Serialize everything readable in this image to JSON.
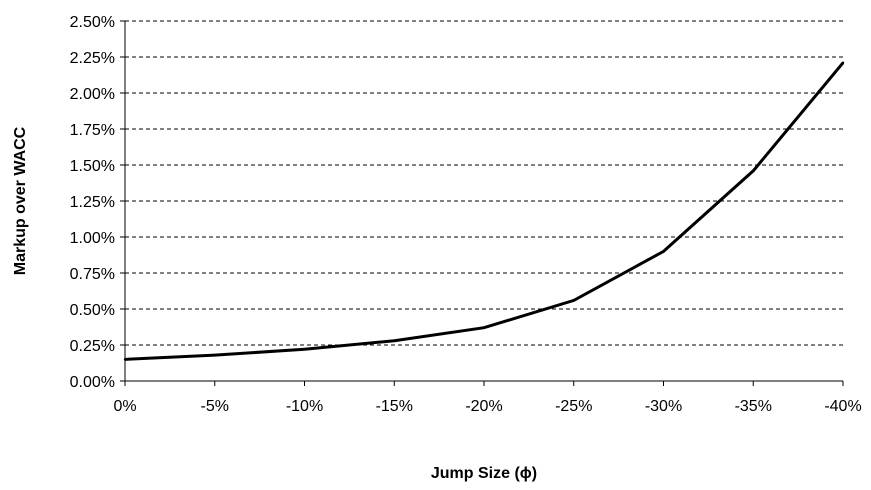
{
  "chart_data": {
    "type": "line",
    "title": "",
    "xlabel": "Jump Size (ϕ)",
    "ylabel": "Markup over WACC",
    "categories": [
      "0%",
      "-5%",
      "-10%",
      "-15%",
      "-20%",
      "-25%",
      "-30%",
      "-35%",
      "-40%"
    ],
    "series": [
      {
        "values": [
          0.0015,
          0.0018,
          0.0022,
          0.0028,
          0.0037,
          0.0056,
          0.009,
          0.0146,
          0.0221
        ]
      }
    ],
    "ylim": [
      0,
      0.025
    ],
    "yticks": [
      {
        "value": 0.0,
        "label": "0.00%"
      },
      {
        "value": 0.0025,
        "label": "0.25%"
      },
      {
        "value": 0.005,
        "label": "0.50%"
      },
      {
        "value": 0.0075,
        "label": "0.75%"
      },
      {
        "value": 0.01,
        "label": "1.00%"
      },
      {
        "value": 0.0125,
        "label": "1.25%"
      },
      {
        "value": 0.015,
        "label": "1.50%"
      },
      {
        "value": 0.0175,
        "label": "1.75%"
      },
      {
        "value": 0.02,
        "label": "2.00%"
      },
      {
        "value": 0.0225,
        "label": "2.25%"
      },
      {
        "value": 0.025,
        "label": "2.50%"
      }
    ],
    "grid": "horizontal-dashed",
    "legend": "none",
    "line_color": "#000000"
  }
}
